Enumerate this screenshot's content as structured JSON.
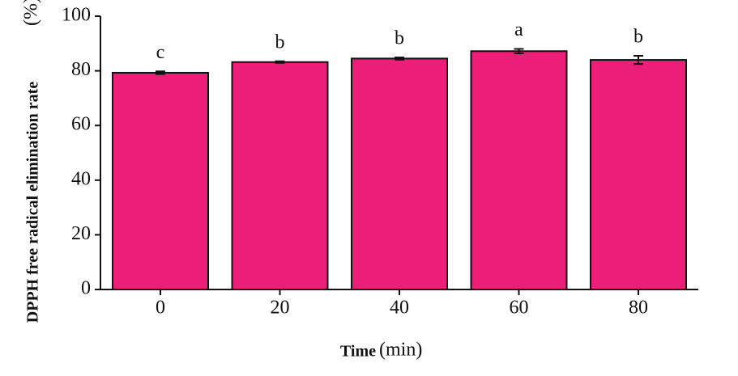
{
  "chart_data": {
    "type": "bar",
    "x_label": "Time",
    "x_label_unit": "(min)",
    "y_label": "DPPH free radical elimination rate",
    "y_label_unit": "(%)",
    "categories": [
      "0",
      "20",
      "40",
      "60",
      "80"
    ],
    "values": [
      79.3,
      83.2,
      84.5,
      87.2,
      84.0
    ],
    "errors": [
      0.5,
      0.3,
      0.4,
      0.8,
      1.5
    ],
    "annotations": [
      "c",
      "b",
      "b",
      "a",
      "b"
    ],
    "color": "#ec1e78",
    "ylim": [
      0,
      100
    ],
    "yticks": [
      0,
      20,
      40,
      60,
      80,
      100
    ],
    "grid": false
  }
}
